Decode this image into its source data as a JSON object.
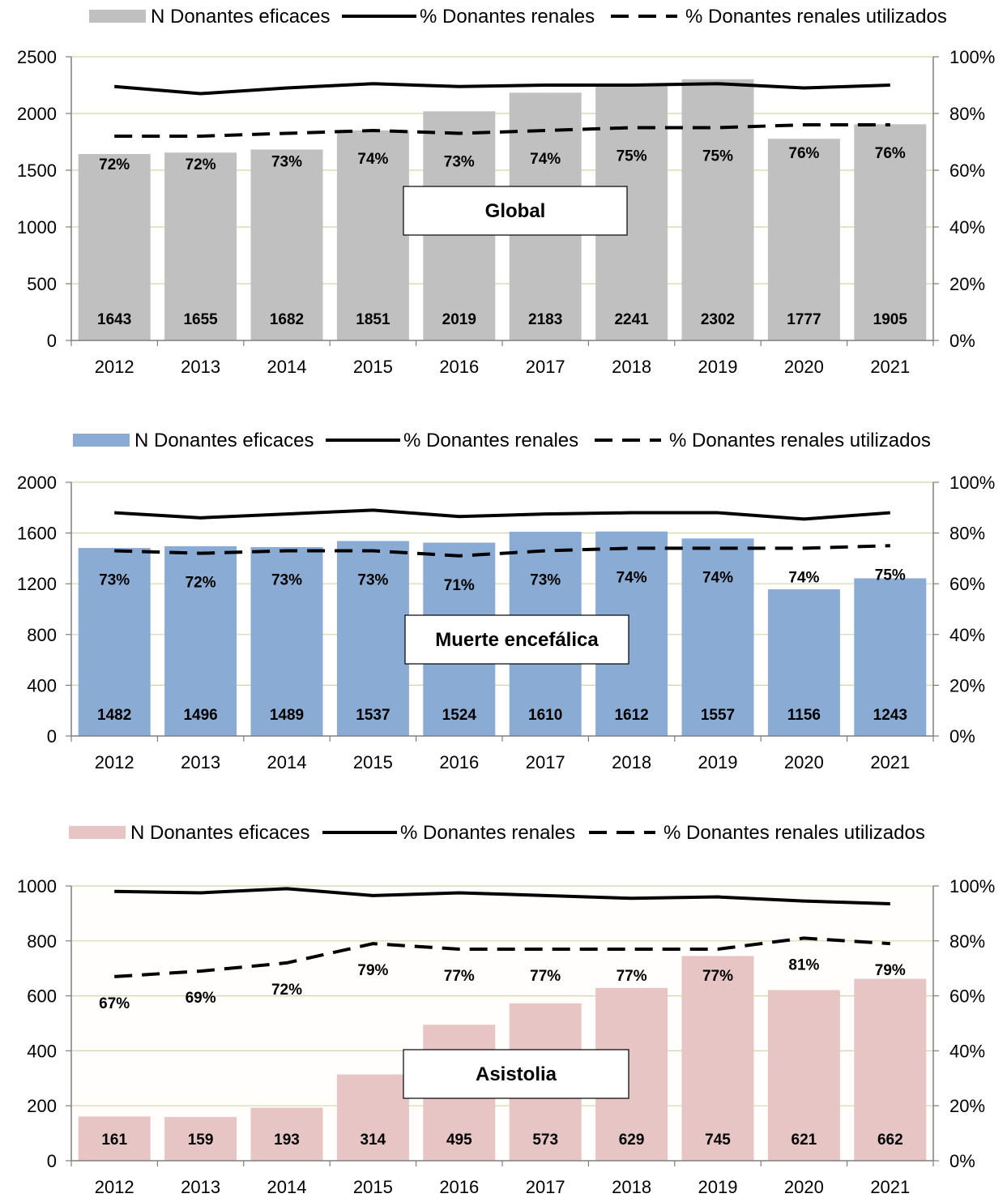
{
  "legend": {
    "bars": "N Donantes eficaces",
    "solid": "% Donantes renales",
    "dashed": "% Donantes renales utilizados"
  },
  "chart_data": [
    {
      "type": "bar",
      "title": "Global",
      "categories": [
        "2012",
        "2013",
        "2014",
        "2015",
        "2016",
        "2017",
        "2018",
        "2019",
        "2020",
        "2021"
      ],
      "ylim": [
        0,
        2500
      ],
      "yticks": [
        0,
        500,
        1000,
        1500,
        2000,
        2500
      ],
      "y2lim": [
        0,
        100
      ],
      "y2ticks": [
        "0%",
        "20%",
        "40%",
        "60%",
        "80%",
        "100%"
      ],
      "bar_color": "#c0c0c0",
      "plot_background": "#ffffff",
      "grid": true,
      "legend_position": "top",
      "series": [
        {
          "name": "N Donantes eficaces",
          "type": "bar",
          "axis": "left",
          "values": [
            1643,
            1655,
            1682,
            1851,
            2019,
            2183,
            2241,
            2302,
            1777,
            1905
          ]
        },
        {
          "name": "% Donantes renales",
          "type": "line",
          "style": "solid",
          "axis": "right",
          "values": [
            89.5,
            87,
            89,
            90.5,
            89.5,
            90,
            90,
            90.5,
            89,
            90
          ]
        },
        {
          "name": "% Donantes renales utilizados",
          "type": "line",
          "style": "dashed",
          "axis": "right",
          "values": [
            72,
            72,
            73,
            74,
            73,
            74,
            75,
            75,
            76,
            76
          ],
          "labels": [
            "72%",
            "72%",
            "73%",
            "74%",
            "73%",
            "74%",
            "75%",
            "75%",
            "76%",
            "76%"
          ]
        }
      ]
    },
    {
      "type": "bar",
      "title": "Muerte encefálica",
      "categories": [
        "2012",
        "2013",
        "2014",
        "2015",
        "2016",
        "2017",
        "2018",
        "2019",
        "2020",
        "2021"
      ],
      "ylim": [
        0,
        2000
      ],
      "yticks": [
        0,
        400,
        800,
        1200,
        1600,
        2000
      ],
      "y2lim": [
        0,
        100
      ],
      "y2ticks": [
        "0%",
        "20%",
        "40%",
        "60%",
        "80%",
        "100%"
      ],
      "bar_color": "#8aabd3",
      "plot_background": "#ffffff",
      "grid": true,
      "legend_position": "top",
      "series": [
        {
          "name": "N Donantes eficaces",
          "type": "bar",
          "axis": "left",
          "values": [
            1482,
            1496,
            1489,
            1537,
            1524,
            1610,
            1612,
            1557,
            1156,
            1243
          ]
        },
        {
          "name": "% Donantes renales",
          "type": "line",
          "style": "solid",
          "axis": "right",
          "values": [
            88,
            86,
            87.5,
            89,
            86.5,
            87.5,
            88,
            88,
            85.5,
            88
          ]
        },
        {
          "name": "% Donantes renales utilizados",
          "type": "line",
          "style": "dashed",
          "axis": "right",
          "values": [
            73,
            72,
            73,
            73,
            71,
            73,
            74,
            74,
            74,
            75
          ],
          "labels": [
            "73%",
            "72%",
            "73%",
            "73%",
            "71%",
            "73%",
            "74%",
            "74%",
            "74%",
            "75%"
          ]
        }
      ]
    },
    {
      "type": "bar",
      "title": "Asistolia",
      "categories": [
        "2012",
        "2013",
        "2014",
        "2015",
        "2016",
        "2017",
        "2018",
        "2019",
        "2020",
        "2021"
      ],
      "ylim": [
        0,
        1000
      ],
      "yticks": [
        0,
        200,
        400,
        600,
        800,
        1000
      ],
      "y2lim": [
        0,
        100
      ],
      "y2ticks": [
        "0%",
        "20%",
        "40%",
        "60%",
        "80%",
        "100%"
      ],
      "bar_color": "#e8c5c5",
      "plot_background": "#fffefc",
      "grid": true,
      "legend_position": "top",
      "series": [
        {
          "name": "N Donantes eficaces",
          "type": "bar",
          "axis": "left",
          "values": [
            161,
            159,
            193,
            314,
            495,
            573,
            629,
            745,
            621,
            662
          ]
        },
        {
          "name": "% Donantes renales",
          "type": "line",
          "style": "solid",
          "axis": "right",
          "values": [
            98,
            97.5,
            99,
            96.5,
            97.5,
            96.5,
            95.5,
            96,
            94.5,
            93.5
          ]
        },
        {
          "name": "% Donantes renales utilizados",
          "type": "line",
          "style": "dashed",
          "axis": "right",
          "values": [
            67,
            69,
            72,
            79,
            77,
            77,
            77,
            77,
            81,
            79
          ],
          "labels": [
            "67%",
            "69%",
            "72%",
            "79%",
            "77%",
            "77%",
            "77%",
            "77%",
            "81%",
            "79%"
          ]
        }
      ]
    }
  ]
}
